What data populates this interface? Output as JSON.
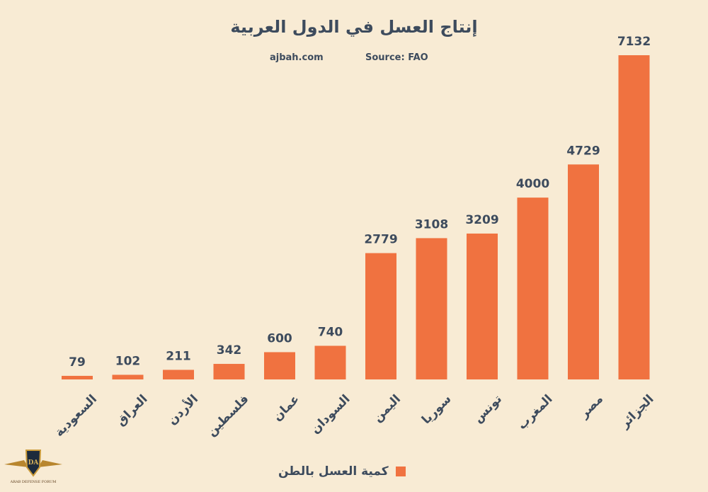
{
  "chart_data": {
    "type": "bar",
    "title": "إنتاج العسل في الدول العربية",
    "site": "ajbah.com",
    "source": "Source: FAO",
    "categories": [
      "السعودية",
      "العراق",
      "الأردن",
      "فلسطين",
      "عمان",
      "السودان",
      "اليمن",
      "سوريا",
      "تونس",
      "المغرب",
      "مصر",
      "الجزائر"
    ],
    "series": [
      {
        "name": "كمية العسل بالطن",
        "values": [
          79,
          102,
          211,
          342,
          600,
          740,
          2779,
          3108,
          3209,
          4000,
          4729,
          7132
        ]
      }
    ],
    "ylim": [
      0,
      7500
    ],
    "grid": false,
    "legend": "bottom-center"
  },
  "colors": {
    "bar": "#f07240",
    "text": "#3d4b5d",
    "background": "#f8ebd4"
  },
  "logo": {
    "text": "ARAB DEFENSE FORUM",
    "mark": "DA"
  }
}
